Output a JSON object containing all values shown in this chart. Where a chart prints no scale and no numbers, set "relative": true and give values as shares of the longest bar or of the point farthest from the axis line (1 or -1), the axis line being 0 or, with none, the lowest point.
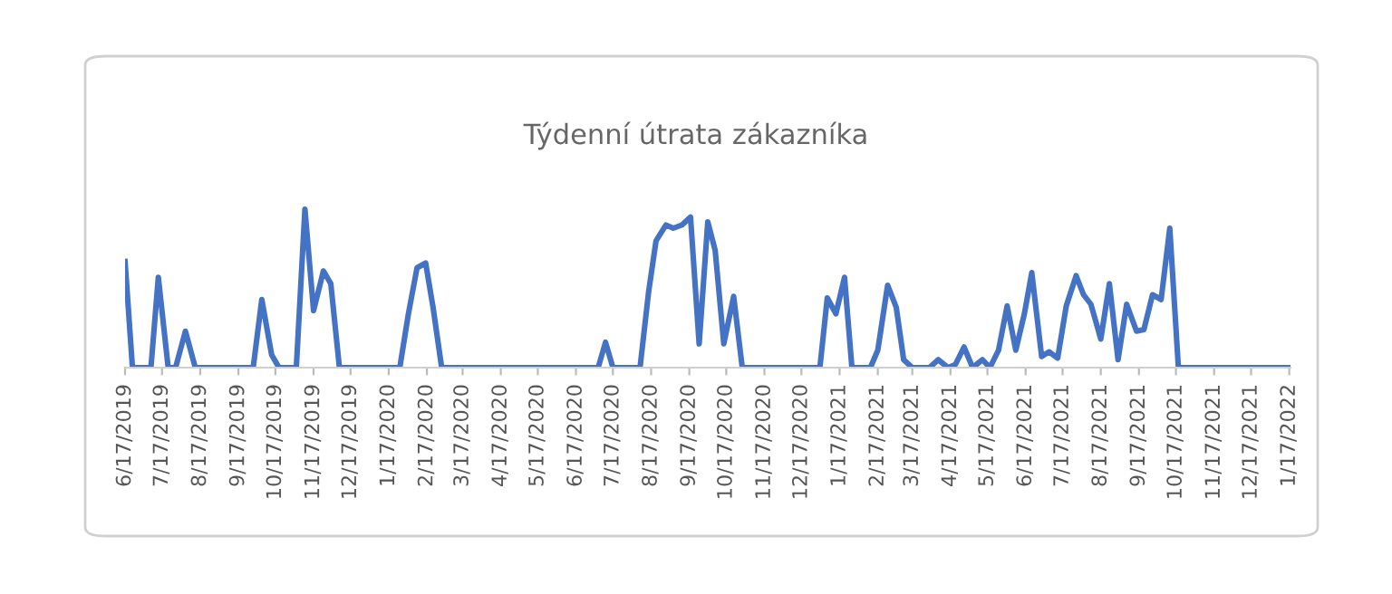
{
  "chart_data": {
    "type": "line",
    "title": "Týdenní útrata zákazníka",
    "relative": true,
    "x": [
      "2019-06-17",
      "2019-06-23",
      "2019-07-08",
      "2019-07-14",
      "2019-07-22",
      "2019-07-28",
      "2019-08-05",
      "2019-08-13",
      "2019-09-29",
      "2019-10-06",
      "2019-10-14",
      "2019-10-20",
      "2019-11-03",
      "2019-11-10",
      "2019-11-17",
      "2019-11-25",
      "2019-12-01",
      "2019-12-08",
      "2020-01-26",
      "2020-02-02",
      "2020-02-09",
      "2020-02-16",
      "2020-02-22",
      "2020-02-29",
      "2020-07-05",
      "2020-07-11",
      "2020-07-17",
      "2020-08-08",
      "2020-08-15",
      "2020-08-21",
      "2020-08-29",
      "2020-09-04",
      "2020-09-11",
      "2020-09-18",
      "2020-09-25",
      "2020-10-02",
      "2020-10-08",
      "2020-10-15",
      "2020-10-23",
      "2020-10-30",
      "2021-01-01",
      "2021-01-07",
      "2021-01-14",
      "2021-01-21",
      "2021-01-27",
      "2021-02-11",
      "2021-02-17",
      "2021-02-25",
      "2021-03-04",
      "2021-03-10",
      "2021-03-17",
      "2021-03-31",
      "2021-04-07",
      "2021-04-15",
      "2021-04-21",
      "2021-04-28",
      "2021-05-05",
      "2021-05-13",
      "2021-05-19",
      "2021-05-26",
      "2021-06-02",
      "2021-06-09",
      "2021-06-16",
      "2021-06-22",
      "2021-06-30",
      "2021-07-06",
      "2021-07-13",
      "2021-07-20",
      "2021-07-28",
      "2021-08-03",
      "2021-08-09",
      "2021-08-17",
      "2021-08-24",
      "2021-08-31",
      "2021-09-07",
      "2021-09-15",
      "2021-09-21",
      "2021-09-28",
      "2021-10-05",
      "2021-10-12",
      "2021-10-19",
      "2022-01-18"
    ],
    "series": [
      {
        "color": "#4472c4",
        "values": [
          0.67,
          0,
          0,
          0.57,
          0,
          0,
          0.23,
          0,
          0,
          0.43,
          0.08,
          0,
          0,
          1,
          0.36,
          0.61,
          0.53,
          0,
          0,
          0.34,
          0.63,
          0.66,
          0.38,
          0,
          0,
          0.16,
          0,
          0,
          0.48,
          0.8,
          0.9,
          0.88,
          0.9,
          0.95,
          0.15,
          0.92,
          0.74,
          0.15,
          0.45,
          0,
          0,
          0.44,
          0.34,
          0.57,
          0,
          0,
          0.11,
          0.52,
          0.38,
          0.05,
          0,
          0,
          0.05,
          0,
          0.02,
          0.13,
          0,
          0.05,
          0,
          0.11,
          0.39,
          0.11,
          0.34,
          0.6,
          0.07,
          0.1,
          0.06,
          0.39,
          0.58,
          0.46,
          0.4,
          0.18,
          0.53,
          0.05,
          0.4,
          0.23,
          0.24,
          0.46,
          0.43,
          0.88,
          0,
          0
        ]
      }
    ],
    "xlim": [
      "2019-06-17",
      "2022-01-18"
    ],
    "xticks": [
      {
        "value": "2019-06-17",
        "label": "6/17/2019"
      },
      {
        "value": "2019-07-17",
        "label": "7/17/2019"
      },
      {
        "value": "2019-08-17",
        "label": "8/17/2019"
      },
      {
        "value": "2019-09-17",
        "label": "9/17/2019"
      },
      {
        "value": "2019-10-17",
        "label": "10/17/2019"
      },
      {
        "value": "2019-11-17",
        "label": "11/17/2019"
      },
      {
        "value": "2019-12-17",
        "label": "12/17/2019"
      },
      {
        "value": "2020-01-17",
        "label": "1/17/2020"
      },
      {
        "value": "2020-02-17",
        "label": "2/17/2020"
      },
      {
        "value": "2020-03-17",
        "label": "3/17/2020"
      },
      {
        "value": "2020-04-17",
        "label": "4/17/2020"
      },
      {
        "value": "2020-05-17",
        "label": "5/17/2020"
      },
      {
        "value": "2020-06-17",
        "label": "6/17/2020"
      },
      {
        "value": "2020-07-17",
        "label": "7/17/2020"
      },
      {
        "value": "2020-08-17",
        "label": "8/17/2020"
      },
      {
        "value": "2020-09-17",
        "label": "9/17/2020"
      },
      {
        "value": "2020-10-17",
        "label": "10/17/2020"
      },
      {
        "value": "2020-11-17",
        "label": "11/17/2020"
      },
      {
        "value": "2020-12-17",
        "label": "12/17/2020"
      },
      {
        "value": "2021-01-17",
        "label": "1/17/2021"
      },
      {
        "value": "2021-02-17",
        "label": "2/17/2021"
      },
      {
        "value": "2021-03-17",
        "label": "3/17/2021"
      },
      {
        "value": "2021-04-17",
        "label": "4/17/2021"
      },
      {
        "value": "2021-05-17",
        "label": "5/17/2021"
      },
      {
        "value": "2021-06-17",
        "label": "6/17/2021"
      },
      {
        "value": "2021-07-17",
        "label": "7/17/2021"
      },
      {
        "value": "2021-08-17",
        "label": "8/17/2021"
      },
      {
        "value": "2021-09-17",
        "label": "9/17/2021"
      },
      {
        "value": "2021-10-17",
        "label": "10/17/2021"
      },
      {
        "value": "2021-11-17",
        "label": "11/17/2021"
      },
      {
        "value": "2021-12-17",
        "label": "12/17/2021"
      },
      {
        "value": "2022-01-17",
        "label": "1/17/2022"
      }
    ],
    "grid": false,
    "legend": false,
    "marker": "none",
    "line_style": "solid"
  }
}
